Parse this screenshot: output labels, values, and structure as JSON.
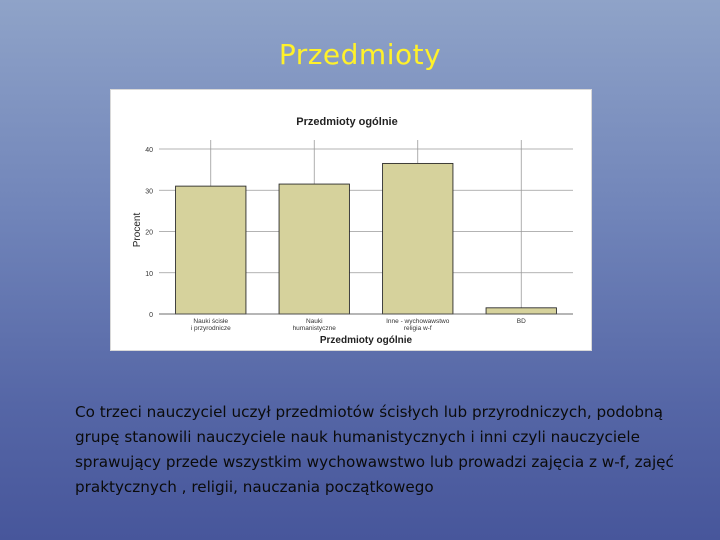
{
  "slide": {
    "title": "Przedmioty",
    "caption": "Co trzeci nauczyciel uczył przedmiotów ścisłych lub przyrodniczych, podobną  grupę stanowili nauczyciele nauk humanistycznych i inni czyli nauczyciele sprawujący przede wszystkim wychowawstwo lub prowadzi zajęcia z w-f, zajęć praktycznych , religii, nauczania początkowego"
  },
  "colors": {
    "bar_fill": "#d6d29c",
    "bar_stroke": "#2c2c2c",
    "grid": "#9a9a9a",
    "title_text": "#fff12a"
  },
  "chart_data": {
    "type": "bar",
    "title": "Przedmioty ogólnie",
    "xlabel": "Przedmioty ogólnie",
    "ylabel": "Procent",
    "ylim": [
      0,
      40
    ],
    "yticks": [
      "0",
      "10",
      "20",
      "30",
      "40"
    ],
    "categories": [
      "Nauki ścisłe i przyrodnicze",
      "Nauki humanistyczne",
      "Inne - wychowawstwo religia w-f",
      "BD"
    ],
    "values": [
      31,
      31.5,
      36.5,
      1.5
    ],
    "grid": true,
    "legend": "none"
  }
}
